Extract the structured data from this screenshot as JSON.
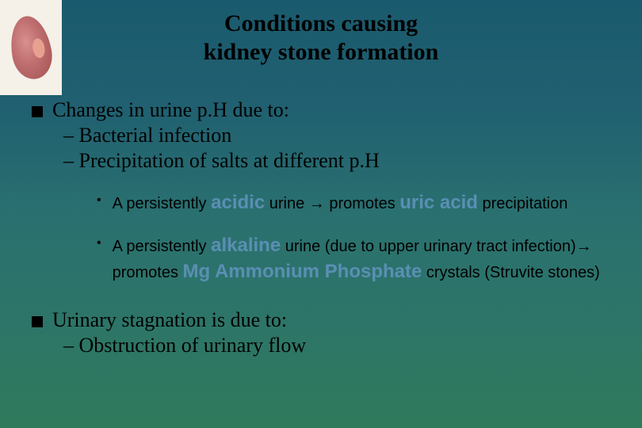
{
  "title_line1": "Conditions causing",
  "title_line2": "kidney stone formation",
  "bullets": {
    "l1_a": "Changes in urine p.H due to:",
    "l2_a": "– Bacterial infection",
    "l2_b": "– Precipitation of salts at different p.H",
    "l3_a_pre": "A persistently ",
    "l3_a_em1": "acidic",
    "l3_a_mid": " urine ",
    "arrow": "→",
    "l3_a_mid2": " promotes ",
    "l3_a_em2": "uric acid",
    "l3_a_post": " precipitation",
    "l3_b_pre": "A persistently ",
    "l3_b_em1": "alkaline",
    "l3_b_mid": " urine (due to upper urinary tract infection)",
    "l3_b_mid2": " promotes ",
    "l3_b_em2": "Mg Ammonium Phosphate",
    "l3_b_post": " crystals (Struvite stones)",
    "l1_b": "Urinary stagnation is due to:",
    "l2_c": "– Obstruction of urinary flow"
  },
  "colors": {
    "text": "#000000",
    "emphasis": "#5a8fb3",
    "bg_top": "#1a5a6e",
    "bg_bottom": "#2f7a5c",
    "kidney_bg": "#f5f0e8"
  },
  "font_sizes": {
    "title": 30,
    "level1": 26,
    "level2": 26,
    "level3": 20,
    "emphasis": 24
  }
}
